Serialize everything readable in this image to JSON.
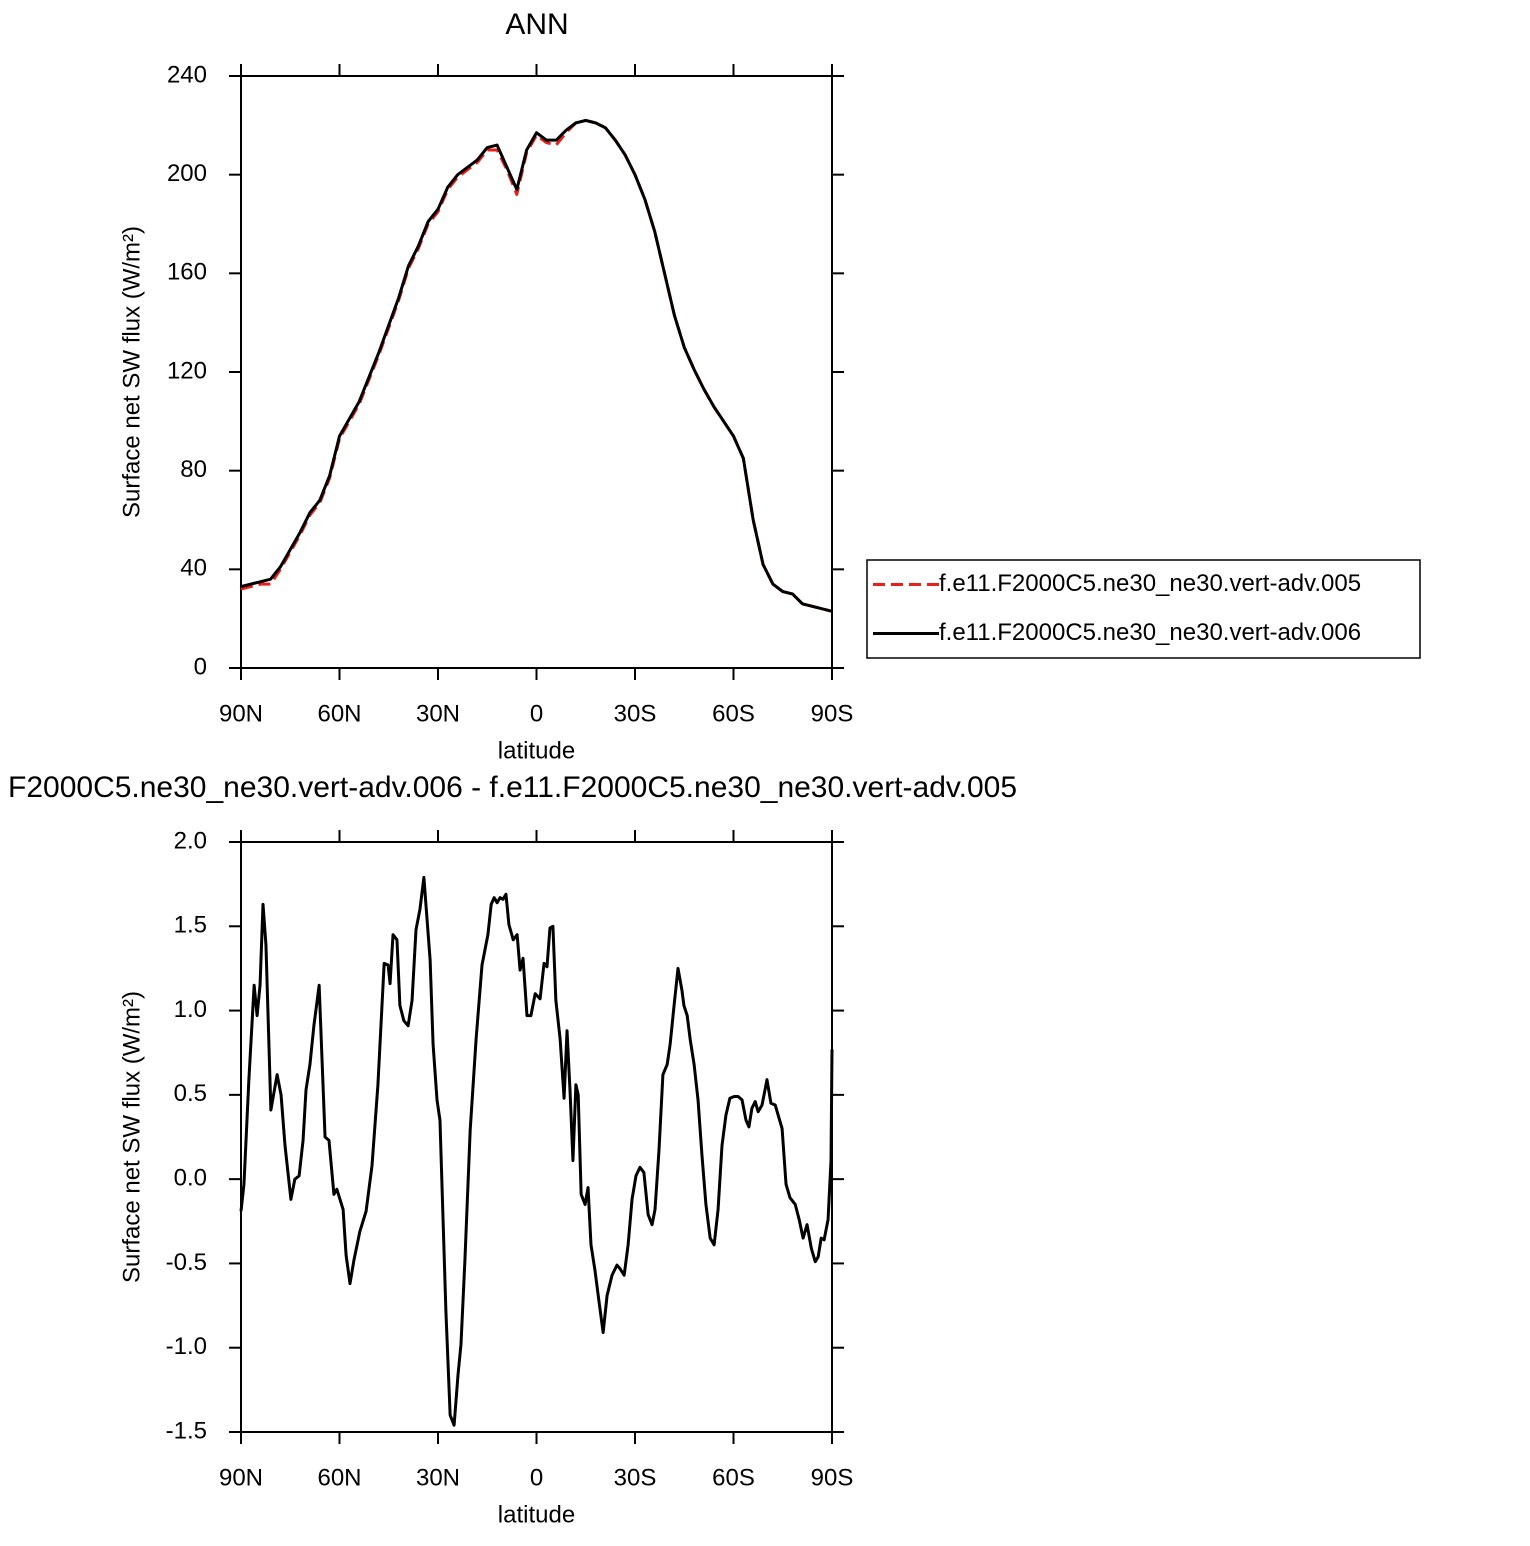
{
  "chart_data": [
    {
      "type": "line",
      "title": "ANN",
      "xlabel": "latitude",
      "ylabel": "Surface net SW flux (W/m²)",
      "x": [
        90,
        87,
        84,
        81,
        78,
        75,
        72,
        69,
        66,
        63,
        60,
        57,
        54,
        51,
        48,
        45,
        42,
        39,
        36,
        33,
        30,
        27,
        24,
        21,
        18,
        15,
        12,
        9,
        6,
        3,
        0,
        -3,
        -6,
        -9,
        -12,
        -15,
        -18,
        -21,
        -24,
        -27,
        -30,
        -33,
        -36,
        -39,
        -42,
        -45,
        -48,
        -51,
        -54,
        -57,
        -60,
        -63,
        -66,
        -69,
        -72,
        -75,
        -78,
        -81,
        -84,
        -87,
        -90
      ],
      "series": [
        {
          "name": "f.e11.F2000C5.ne30_ne30.vert-adv.005",
          "color": "#e8201a",
          "dash": true,
          "values": [
            32,
            33,
            34,
            34,
            40,
            47,
            54,
            62,
            67,
            77,
            93,
            100,
            107,
            117,
            127,
            138,
            149,
            162,
            170,
            180,
            185,
            194,
            199,
            202,
            205,
            210,
            210,
            202,
            192,
            209,
            216,
            213,
            212,
            217,
            221,
            222,
            221,
            219,
            214,
            208,
            200,
            190,
            177,
            160,
            143,
            130,
            121,
            113,
            106,
            100,
            94,
            85,
            60,
            42,
            34,
            31,
            30,
            26,
            25,
            24,
            23
          ]
        },
        {
          "name": "f.e11.F2000C5.ne30_ne30.vert-adv.006",
          "color": "#000000",
          "dash": false,
          "values": [
            33,
            34,
            35,
            36,
            41,
            48,
            55,
            63,
            68,
            78,
            94,
            101,
            108,
            118,
            128,
            139,
            150,
            163,
            171,
            181,
            186,
            195,
            200,
            203,
            206,
            211,
            212,
            203,
            194,
            210,
            217,
            214,
            214,
            218,
            221,
            222,
            221,
            219,
            214,
            208,
            200,
            190,
            177,
            160,
            143,
            130,
            121,
            113,
            106,
            100,
            94,
            85,
            60,
            42,
            34,
            31,
            30,
            26,
            25,
            24,
            23
          ]
        }
      ],
      "xlim": [
        90,
        -90
      ],
      "xticks": [
        {
          "value": 90,
          "label": "90N"
        },
        {
          "value": 60,
          "label": "60N"
        },
        {
          "value": 30,
          "label": "30N"
        },
        0,
        {
          "value": -30,
          "label": "30S"
        },
        {
          "value": -60,
          "label": "60S"
        },
        {
          "value": -90,
          "label": "90S"
        }
      ],
      "ylim": [
        0,
        240
      ],
      "yticks": [
        0,
        40,
        80,
        120,
        160,
        200,
        240
      ],
      "legend": "right"
    },
    {
      "type": "line",
      "title": "F2000C5.ne30_ne30.vert-adv.006 - f.e11.F2000C5.ne30_ne30.vert-adv.005",
      "xlabel": "latitude",
      "ylabel": "Surface net SW flux (W/m²)",
      "x": [
        90,
        89.1,
        87.6,
        86,
        85.1,
        84.2,
        83.3,
        82.4,
        80.9,
        79,
        77.8,
        76.6,
        74.8,
        73.6,
        72.3,
        71.1,
        70.2,
        69,
        67.8,
        66.2,
        64.4,
        63.2,
        61.7,
        60.8,
        58.9,
        58,
        56.8,
        55.6,
        53.8,
        51.9,
        50.1,
        48.3,
        46.4,
        45.2,
        44.6,
        43.7,
        42.5,
        41.6,
        40.4,
        39.1,
        37.9,
        36.7,
        35.5,
        34.3,
        32.4,
        31.5,
        30.3,
        29.4,
        27.6,
        26.3,
        25.1,
        23.9,
        23,
        21.8,
        20.2,
        18.4,
        16.6,
        15.4,
        14.8,
        13.8,
        12.9,
        12,
        11.1,
        10.2,
        9.3,
        8.4,
        7.1,
        5.9,
        5,
        4.1,
        2.9,
        1.7,
        0.4,
        -1.1,
        -2.3,
        -3.2,
        -4.1,
        -5,
        -5.9,
        -7.2,
        -8.4,
        -9.3,
        -10.2,
        -11.1,
        -12,
        -12.7,
        -13.6,
        -14.8,
        -15.7,
        -16.6,
        -17.8,
        -19,
        -20.3,
        -21.5,
        -23,
        -24.5,
        -25.4,
        -26.7,
        -27.9,
        -29.1,
        -30.3,
        -31.5,
        -32.7,
        -34,
        -35.2,
        -36.1,
        -37.3,
        -38.5,
        -39.8,
        -40.7,
        -41.9,
        -43.1,
        -44.3,
        -44.9,
        -45.9,
        -46.8,
        -48,
        -49.2,
        -50.4,
        -51.6,
        -52.9,
        -54.1,
        -55.3,
        -56.5,
        -57.7,
        -58.9,
        -60.2,
        -61.4,
        -62.6,
        -63.8,
        -64.7,
        -65.6,
        -66.6,
        -67.5,
        -68.7,
        -70.2,
        -71.4,
        -72.7,
        -73.6,
        -74.8,
        -76,
        -77.2,
        -78.8,
        -80,
        -81.2,
        -82.4,
        -83.7,
        -84.9,
        -85.8,
        -86.7,
        -87.6,
        -88.8,
        -89.7,
        -90
      ],
      "values": [
        -0.19,
        -0.03,
        0.59,
        1.15,
        0.97,
        1.15,
        1.63,
        1.39,
        0.41,
        0.62,
        0.5,
        0.2,
        -0.12,
        0,
        0.02,
        0.23,
        0.53,
        0.68,
        0.91,
        1.15,
        0.25,
        0.23,
        -0.09,
        -0.06,
        -0.18,
        -0.45,
        -0.62,
        -0.48,
        -0.31,
        -0.19,
        0.08,
        0.56,
        1.28,
        1.27,
        1.16,
        1.45,
        1.42,
        1.03,
        0.94,
        0.91,
        1.06,
        1.48,
        1.6,
        1.79,
        1.3,
        0.8,
        0.47,
        0.35,
        -0.78,
        -1.4,
        -1.46,
        -1.16,
        -0.98,
        -0.48,
        0.29,
        0.83,
        1.27,
        1.39,
        1.45,
        1.63,
        1.67,
        1.64,
        1.67,
        1.66,
        1.69,
        1.51,
        1.42,
        1.45,
        1.24,
        1.31,
        0.97,
        0.97,
        1.1,
        1.07,
        1.28,
        1.26,
        1.49,
        1.5,
        1.06,
        0.83,
        0.48,
        0.88,
        0.53,
        0.11,
        0.56,
        0.5,
        -0.09,
        -0.15,
        -0.05,
        -0.39,
        -0.54,
        -0.72,
        -0.91,
        -0.69,
        -0.57,
        -0.51,
        -0.53,
        -0.57,
        -0.39,
        -0.12,
        0.02,
        0.07,
        0.04,
        -0.21,
        -0.27,
        -0.18,
        0.17,
        0.62,
        0.68,
        0.8,
        1.03,
        1.25,
        1.12,
        1.03,
        0.97,
        0.83,
        0.68,
        0.47,
        0.14,
        -0.15,
        -0.35,
        -0.39,
        -0.18,
        0.2,
        0.38,
        0.48,
        0.49,
        0.49,
        0.47,
        0.35,
        0.31,
        0.42,
        0.46,
        0.4,
        0.44,
        0.59,
        0.45,
        0.44,
        0.38,
        0.3,
        -0.03,
        -0.11,
        -0.15,
        -0.24,
        -0.35,
        -0.27,
        -0.41,
        -0.49,
        -0.46,
        -0.35,
        -0.36,
        -0.24,
        0.11,
        0.77
      ],
      "color": "#000000",
      "xlim": [
        90,
        -90
      ],
      "xticks": [
        {
          "value": 90,
          "label": "90N"
        },
        {
          "value": 60,
          "label": "60N"
        },
        {
          "value": 30,
          "label": "30N"
        },
        0,
        {
          "value": -30,
          "label": "30S"
        },
        {
          "value": -60,
          "label": "60S"
        },
        {
          "value": -90,
          "label": "90S"
        }
      ],
      "ylim": [
        -1.5,
        2
      ],
      "yticks": [
        -1.5,
        {
          "value": -1,
          "label": "-1.0"
        },
        -0.5,
        {
          "value": 0,
          "label": "0.0"
        },
        0.5,
        {
          "value": 1,
          "label": "1.0"
        },
        1.5,
        {
          "value": 2,
          "label": "2.0"
        }
      ]
    }
  ]
}
